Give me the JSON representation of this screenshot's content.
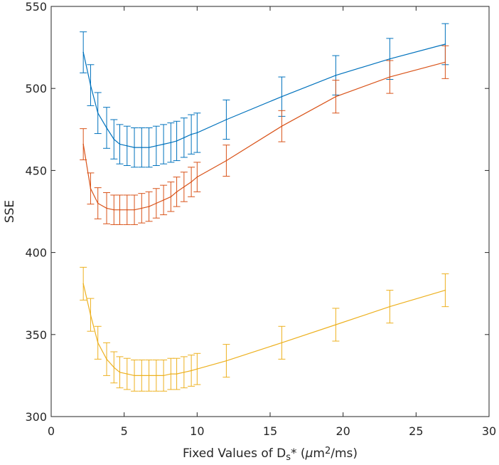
{
  "chart_data": {
    "type": "line",
    "title": "",
    "xlabel": "Fixed Values of D",
    "xlabel_sub": "s",
    "xlabel_tail": "* (",
    "xlabel_mu": "μ",
    "xlabel_unit": "m",
    "xlabel_sup": "2",
    "xlabel_end": "/ms)",
    "ylabel": "SSE",
    "xlim": [
      0,
      30
    ],
    "ylim": [
      300,
      550
    ],
    "xticks": [
      0,
      5,
      10,
      15,
      20,
      25,
      30
    ],
    "yticks": [
      300,
      350,
      400,
      450,
      500,
      550
    ],
    "x": [
      2.2,
      2.7,
      3.2,
      3.8,
      4.3,
      4.7,
      5.2,
      5.7,
      6.2,
      6.7,
      7.2,
      7.7,
      8.2,
      8.6,
      9.1,
      9.6,
      10.0,
      12.0,
      15.8,
      19.5,
      23.2,
      27.0
    ],
    "series": [
      {
        "name": "series-1",
        "color": "#0072BD",
        "values": [
          522,
          502,
          485,
          476,
          469,
          466,
          465,
          464,
          464,
          464,
          465,
          466,
          467,
          468,
          470,
          472,
          473,
          481,
          495,
          508,
          518,
          527
        ],
        "errors": [
          12.5,
          12.5,
          12.5,
          12.5,
          12,
          12,
          12,
          12,
          12,
          12,
          12,
          12,
          12,
          12,
          12,
          12,
          12,
          12,
          12,
          12,
          12.5,
          12.5
        ]
      },
      {
        "name": "series-2",
        "color": "#D95319",
        "values": [
          466,
          439,
          430,
          427,
          426,
          426,
          426,
          426,
          427,
          428,
          430,
          432,
          434,
          437,
          440,
          443,
          446,
          456,
          477,
          495,
          507,
          516
        ],
        "errors": [
          9.5,
          9.5,
          9.5,
          9.5,
          9,
          9,
          9,
          9,
          9,
          9,
          9,
          9,
          9,
          9,
          9,
          9,
          9,
          9.5,
          9.5,
          10,
          10,
          10
        ]
      },
      {
        "name": "series-3",
        "color": "#EDB120",
        "values": [
          381,
          362,
          345,
          335,
          330,
          327,
          326,
          325,
          325,
          325,
          325,
          325,
          326,
          326,
          327,
          328,
          329,
          334,
          345,
          356,
          367,
          377
        ],
        "errors": [
          10,
          10,
          10,
          10,
          9.5,
          9.5,
          9.5,
          9.5,
          9.5,
          9.5,
          9.5,
          9.5,
          9.5,
          9.5,
          9.5,
          9.5,
          9.5,
          10,
          10,
          10,
          10,
          10
        ]
      }
    ]
  }
}
